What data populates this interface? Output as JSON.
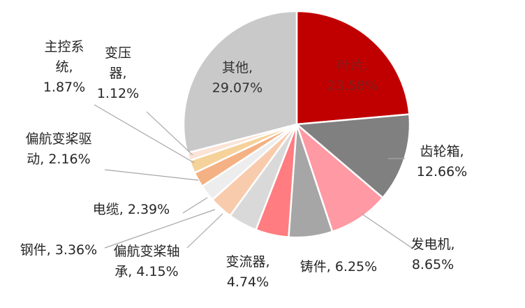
{
  "chart_data": {
    "type": "pie",
    "title": "",
    "slices": [
      {
        "name": "叶片",
        "value": 23.58,
        "label": "23.58%",
        "color": "#c00000"
      },
      {
        "name": "齿轮箱",
        "value": 12.66,
        "label": "12.66%",
        "color": "#808080"
      },
      {
        "name": "发电机",
        "value": 8.65,
        "label": "8.65%",
        "color": "#ff99a3"
      },
      {
        "name": "铸件",
        "value": 6.25,
        "label": "6.25%",
        "color": "#a6a6a6"
      },
      {
        "name": "变流器",
        "value": 4.74,
        "label": "4.74%",
        "color": "#ff7c80"
      },
      {
        "name": "偏航变桨轴承",
        "value": 4.15,
        "label": "4.15%",
        "color": "#d9d9d9"
      },
      {
        "name": "钢件",
        "value": 3.36,
        "label": "3.36%",
        "color": "#f8cbad"
      },
      {
        "name": "电缆",
        "value": 2.39,
        "label": "2.39%",
        "color": "#ededed"
      },
      {
        "name": "偏航变桨驱动",
        "value": 2.16,
        "label": "2.16%",
        "color": "#f4b183"
      },
      {
        "name": "主控系统",
        "value": 1.87,
        "label": "1.87%",
        "color": "#f5d29a"
      },
      {
        "name": "变压器",
        "value": 1.12,
        "label": "1.12%",
        "color": "#fbe3d6"
      },
      {
        "name": "其他",
        "value": 29.07,
        "label": "29.07%",
        "color": "#c9c9c9"
      }
    ],
    "data_labels": [
      {
        "lines": [
          "叶片,",
          "23.58%"
        ]
      },
      {
        "lines": [
          "齿轮箱,",
          "12.66%"
        ]
      },
      {
        "lines": [
          "发电机,",
          "8.65%"
        ]
      },
      {
        "lines": [
          "铸件, 6.25%"
        ]
      },
      {
        "lines": [
          "变流器,",
          "4.74%"
        ]
      },
      {
        "lines": [
          "偏航变桨轴",
          "承, 4.15%"
        ]
      },
      {
        "lines": [
          "钢件, 3.36%"
        ]
      },
      {
        "lines": [
          "电缆, 2.39%"
        ]
      },
      {
        "lines": [
          "偏航变桨驱",
          "动, 2.16%"
        ]
      },
      {
        "lines": [
          "主控系",
          "统,",
          "1.87%"
        ]
      },
      {
        "lines": [
          "变压",
          "器,",
          "1.12%"
        ]
      },
      {
        "lines": [
          "其他,",
          "29.07%"
        ]
      }
    ]
  }
}
